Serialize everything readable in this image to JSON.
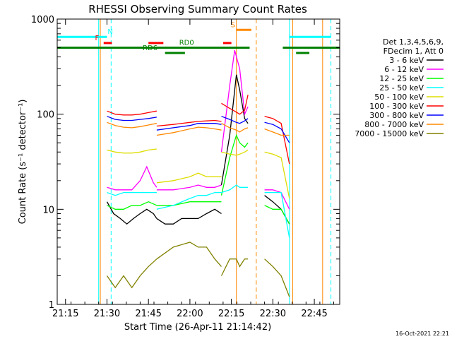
{
  "chart_data": {
    "type": "line",
    "title": "RHESSI Observing Summary Count Rates",
    "xlabel": "Start Time (26-Apr-11 21:14:42)",
    "ylabel": "Count Rate (s⁻¹ detector⁻¹)",
    "y_scale": "log",
    "ylim": [
      1,
      1000
    ],
    "xlim": [
      21.2,
      22.903
    ],
    "x_ticks": [
      "21:15",
      "21:30",
      "21:45",
      "22:00",
      "22:15",
      "22:30",
      "22:45"
    ],
    "y_ticks": [
      "1",
      "10",
      "100",
      "1000"
    ],
    "grid": false,
    "legend_header": [
      "Det 1,3,4,5,6,9,",
      "FDecim 1, Att 0"
    ],
    "legend_position": "right",
    "timestamp": "16-Oct-2021 22:21",
    "series": [
      {
        "name": "3 - 6 keV",
        "color": "#000000",
        "segments": [
          {
            "x": [
              21.5,
              21.54,
              21.58,
              21.62,
              21.66,
              21.7,
              21.74,
              21.78,
              21.8
            ],
            "y": [
              12,
              9,
              8,
              7,
              8,
              9,
              10,
              9,
              8
            ]
          },
          {
            "x": [
              21.8,
              21.85,
              21.9,
              21.95,
              22.0,
              22.05,
              22.1,
              22.15,
              22.19
            ],
            "y": [
              8,
              7,
              7,
              8,
              8,
              8,
              9,
              10,
              9
            ]
          },
          {
            "x": [
              22.19,
              22.24,
              22.28,
              22.3,
              22.33,
              22.35
            ],
            "y": [
              18,
              60,
              260,
              180,
              90,
              80
            ]
          },
          {
            "x": [
              22.45,
              22.5,
              22.55,
              22.6
            ],
            "y": [
              14,
              12,
              10,
              7
            ]
          }
        ]
      },
      {
        "name": "6 - 12 keV",
        "color": "#ff00ff",
        "segments": [
          {
            "x": [
              21.5,
              21.55,
              21.6,
              21.65,
              21.7,
              21.74,
              21.78,
              21.8
            ],
            "y": [
              17,
              16,
              16,
              16,
              20,
              28,
              19,
              17
            ]
          },
          {
            "x": [
              21.8,
              21.9,
              22.0,
              22.05,
              22.1,
              22.15,
              22.19
            ],
            "y": [
              16,
              16,
              17,
              18,
              17,
              17,
              18
            ]
          },
          {
            "x": [
              22.19,
              22.24,
              22.27,
              22.3,
              22.33,
              22.35
            ],
            "y": [
              40,
              200,
              470,
              300,
              100,
              120
            ]
          },
          {
            "x": [
              22.45,
              22.5,
              22.55,
              22.6
            ],
            "y": [
              16,
              16,
              15,
              10
            ]
          }
        ]
      },
      {
        "name": "12 - 25 keV",
        "color": "#00ff00",
        "segments": [
          {
            "x": [
              21.5,
              21.55,
              21.6,
              21.65,
              21.7,
              21.75,
              21.8
            ],
            "y": [
              11,
              10,
              10,
              11,
              11,
              12,
              11
            ]
          },
          {
            "x": [
              21.8,
              21.9,
              22.0,
              22.05,
              22.1,
              22.15,
              22.19
            ],
            "y": [
              11,
              11,
              12,
              12,
              12,
              12,
              12
            ]
          },
          {
            "x": [
              22.19,
              22.24,
              22.28,
              22.3,
              22.33,
              22.35
            ],
            "y": [
              14,
              35,
              60,
              50,
              45,
              50
            ]
          },
          {
            "x": [
              22.45,
              22.5,
              22.55,
              22.6
            ],
            "y": [
              11,
              10,
              10,
              7
            ]
          }
        ]
      },
      {
        "name": "25 - 50 keV",
        "color": "#00ffff",
        "segments": [
          {
            "x": [
              21.5,
              21.55,
              21.6,
              21.65,
              21.7,
              21.75,
              21.8
            ],
            "y": [
              15,
              14,
              15,
              15,
              15,
              15,
              15
            ]
          },
          {
            "x": [
              21.8,
              21.9,
              22.0,
              22.05,
              22.1,
              22.15,
              22.19
            ],
            "y": [
              10,
              11,
              13,
              14,
              14,
              15,
              15
            ]
          },
          {
            "x": [
              22.19,
              22.24,
              22.28,
              22.3,
              22.33,
              22.35
            ],
            "y": [
              15,
              16,
              18,
              17,
              17,
              17
            ]
          },
          {
            "x": [
              22.45,
              22.5,
              22.55,
              22.6
            ],
            "y": [
              15,
              15,
              15,
              5
            ]
          }
        ]
      },
      {
        "name": "50 - 100 keV",
        "color": "#dddd00",
        "segments": [
          {
            "x": [
              21.5,
              21.55,
              21.6,
              21.65,
              21.7,
              21.75,
              21.8
            ],
            "y": [
              42,
              40,
              39,
              39,
              40,
              42,
              43
            ]
          },
          {
            "x": [
              21.8,
              21.9,
              22.0,
              22.05,
              22.1,
              22.15,
              22.19
            ],
            "y": [
              19,
              20,
              22,
              24,
              22,
              22,
              22
            ]
          },
          {
            "x": [
              22.19,
              22.24,
              22.28,
              22.3,
              22.33,
              22.35
            ],
            "y": [
              40,
              38,
              37,
              38,
              40,
              42
            ]
          },
          {
            "x": [
              22.45,
              22.5,
              22.55,
              22.6
            ],
            "y": [
              40,
              38,
              35,
              13
            ]
          }
        ]
      },
      {
        "name": "100 - 300 keV",
        "color": "#ff0000",
        "segments": [
          {
            "x": [
              21.5,
              21.55,
              21.6,
              21.65,
              21.7,
              21.75,
              21.8
            ],
            "y": [
              108,
              100,
              98,
              98,
              100,
              104,
              108
            ]
          },
          {
            "x": [
              21.8,
              21.9,
              22.0,
              22.05,
              22.1,
              22.15,
              22.19
            ],
            "y": [
              75,
              78,
              82,
              84,
              85,
              86,
              84
            ]
          },
          {
            "x": [
              22.19,
              22.24,
              22.28,
              22.3,
              22.33,
              22.35
            ],
            "y": [
              130,
              115,
              105,
              100,
              110,
              160
            ]
          },
          {
            "x": [
              22.45,
              22.5,
              22.55,
              22.6
            ],
            "y": [
              95,
              90,
              80,
              30
            ]
          }
        ]
      },
      {
        "name": "300 - 800 keV",
        "color": "#0000ff",
        "segments": [
          {
            "x": [
              21.5,
              21.55,
              21.6,
              21.65,
              21.7,
              21.75,
              21.8
            ],
            "y": [
              95,
              88,
              86,
              86,
              88,
              90,
              93
            ]
          },
          {
            "x": [
              21.8,
              21.9,
              22.0,
              22.05,
              22.1,
              22.15,
              22.19
            ],
            "y": [
              68,
              72,
              76,
              80,
              80,
              80,
              78
            ]
          },
          {
            "x": [
              22.19,
              22.24,
              22.28,
              22.3,
              22.33,
              22.35
            ],
            "y": [
              95,
              88,
              82,
              80,
              85,
              90
            ]
          },
          {
            "x": [
              22.45,
              22.5,
              22.55,
              22.6
            ],
            "y": [
              82,
              78,
              70,
              50
            ]
          }
        ]
      },
      {
        "name": "800 - 7000 keV",
        "color": "#ff8800",
        "segments": [
          {
            "x": [
              21.5,
              21.55,
              21.6,
              21.65,
              21.7,
              21.75,
              21.8
            ],
            "y": [
              82,
              76,
              73,
              72,
              74,
              77,
              80
            ]
          },
          {
            "x": [
              21.8,
              21.9,
              22.0,
              22.05,
              22.1,
              22.15,
              22.19
            ],
            "y": [
              60,
              64,
              70,
              73,
              72,
              70,
              68
            ]
          },
          {
            "x": [
              22.19,
              22.24,
              22.28,
              22.3,
              22.33,
              22.35
            ],
            "y": [
              80,
              72,
              68,
              65,
              70,
              72
            ]
          },
          {
            "x": [
              22.45,
              22.5,
              22.55,
              22.6
            ],
            "y": [
              70,
              65,
              60,
              60
            ]
          }
        ]
      },
      {
        "name": "7000 - 15000 keV",
        "color": "#808000",
        "segments": [
          {
            "x": [
              21.5,
              21.55,
              21.6,
              21.65,
              21.7,
              21.75,
              21.8
            ],
            "y": [
              2,
              1.5,
              2,
              1.5,
              2,
              2.5,
              3
            ]
          },
          {
            "x": [
              21.8,
              21.9,
              22.0,
              22.05,
              22.1,
              22.15,
              22.19
            ],
            "y": [
              3,
              4,
              4.5,
              4,
              4,
              3,
              2.5
            ]
          },
          {
            "x": [
              22.19,
              22.24,
              22.28,
              22.3,
              22.33,
              22.35
            ],
            "y": [
              2,
              3,
              3,
              2.5,
              3,
              3
            ]
          },
          {
            "x": [
              22.45,
              22.5,
              22.55,
              22.6
            ],
            "y": [
              3,
              2.5,
              2,
              1.2
            ]
          }
        ]
      }
    ],
    "flags": [
      {
        "label": "N",
        "color": "#00ffff",
        "text_x": 21.52,
        "level": 650,
        "bars": [
          [
            21.2,
            21.5
          ],
          [
            22.6,
            22.85
          ]
        ]
      },
      {
        "label": "F",
        "color": "#ff0000",
        "text_x": 21.44,
        "level": 560,
        "bars": [
          [
            21.48,
            21.53
          ],
          [
            21.75,
            21.84
          ],
          [
            22.2,
            22.25
          ]
        ]
      },
      {
        "label": "RD0",
        "color": "#008000",
        "text_x": 21.98,
        "level": 500,
        "bars": [
          [
            21.2,
            22.36
          ],
          [
            22.56,
            22.903
          ]
        ]
      },
      {
        "label": "RD6",
        "color": "#008000",
        "text_x": 21.76,
        "level": 440,
        "bars": [
          [
            21.85,
            21.97
          ],
          [
            22.64,
            22.72
          ]
        ]
      },
      {
        "label": "S",
        "color": "#ff8800",
        "text_x": 22.26,
        "level": 770,
        "bars": [
          [
            22.28,
            22.37
          ]
        ]
      }
    ],
    "vertical_markers": [
      {
        "x": 21.2,
        "color": "#00ffff",
        "style": "solid"
      },
      {
        "x": 21.525,
        "color": "#00ffff",
        "style": "dashed"
      },
      {
        "x": 21.45,
        "color": "#00ffff",
        "style": "solid"
      },
      {
        "x": 22.6,
        "color": "#00ffff",
        "style": "solid"
      },
      {
        "x": 22.85,
        "color": "#00ffff",
        "style": "dashed"
      },
      {
        "x": 22.28,
        "color": "#ff8800",
        "style": "solid"
      },
      {
        "x": 22.4,
        "color": "#ff8800",
        "style": "dashed"
      },
      {
        "x": 21.46,
        "color": "#ff8800",
        "style": "solid"
      },
      {
        "x": 22.62,
        "color": "#ff8800",
        "style": "solid"
      },
      {
        "x": 22.8,
        "color": "#ff8800",
        "style": "solid"
      }
    ]
  }
}
